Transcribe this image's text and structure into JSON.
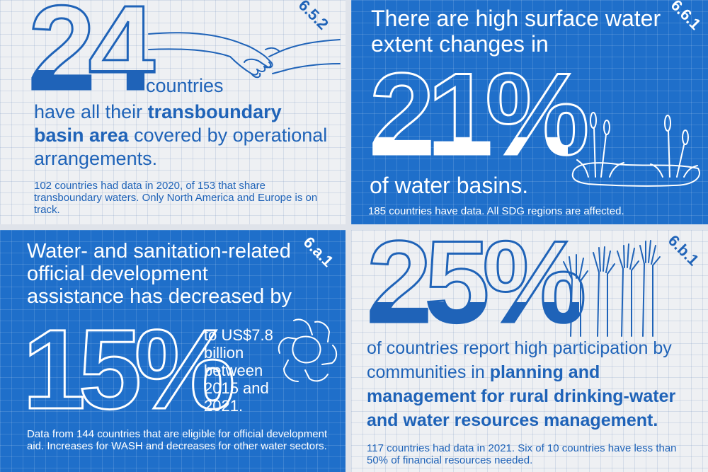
{
  "panel_a": {
    "indicator": "6.5.2",
    "big_number": "24",
    "unit_word": "countries",
    "line_1": "have all their",
    "bold_text": "transboundary basin area",
    "line_3": "covered by operational arrangements.",
    "note": "102 countries had data in 2020, of 153 that share transboundary waters. Only North America and Europe is on track."
  },
  "panel_b": {
    "indicator": "6.6.1",
    "heading": "There are high surface water extent changes in",
    "big_number": "21%",
    "suffix": "of water basins.",
    "note": "185 countries have data. All SDG regions are affected."
  },
  "panel_c": {
    "indicator": "6.a.1",
    "heading": "Water- and sanitation-related official development assistance has decreased by",
    "big_number": "15%",
    "side_text": "to US$7.8 billion between 2015 and 2021.",
    "note": "Data from 144 countries that are eligible for official development aid. Increases for WASH and decreases for other water sectors."
  },
  "panel_d": {
    "indicator": "6.b.1",
    "big_number": "25%",
    "line_1": "of countries report high participation by communities in",
    "bold_text": "planning and management for rural drinking-water and water resources management.",
    "note": "117 countries had data in 2021. Six of 10 countries have less than 50% of financial resources needed."
  },
  "colors": {
    "brand_blue": "#1f6fca",
    "panel_light": "#eef0f3",
    "text_blue": "#1f63b8"
  },
  "icons": [
    "handshake-icon",
    "reeds-icon",
    "joined-hands-icon",
    "raised-hands-icon"
  ]
}
